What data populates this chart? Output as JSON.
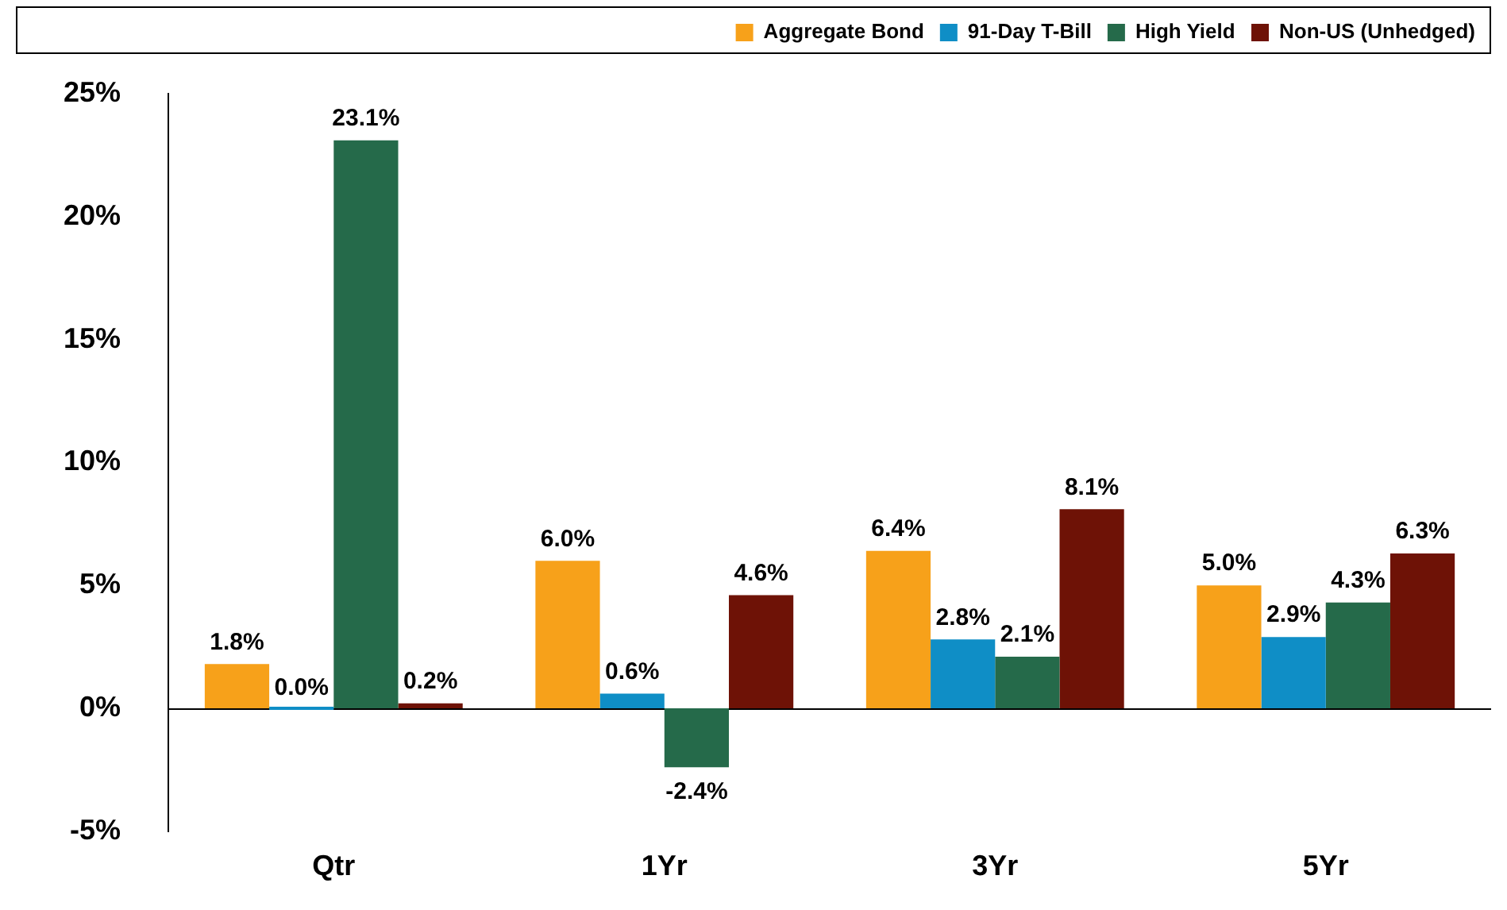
{
  "chart_data": {
    "type": "bar",
    "categories": [
      "Qtr",
      "1Yr",
      "3Yr",
      "5Yr"
    ],
    "series": [
      {
        "name": "Aggregate Bond",
        "color": "#f7a11a",
        "values": [
          1.8,
          6.0,
          6.4,
          5.0
        ],
        "value_labels": [
          "1.8%",
          "6.0%",
          "6.4%",
          "5.0%"
        ]
      },
      {
        "name": "91-Day T-Bill",
        "color": "#0f8ec6",
        "values": [
          0.0,
          0.6,
          2.8,
          2.9
        ],
        "value_labels": [
          "0.0%",
          "0.6%",
          "2.8%",
          "2.9%"
        ]
      },
      {
        "name": "High Yield",
        "color": "#256a4a",
        "values": [
          23.1,
          -2.4,
          2.1,
          4.3
        ],
        "value_labels": [
          "23.1%",
          "-2.4%",
          "2.1%",
          "4.3%"
        ]
      },
      {
        "name": "Non-US (Unhedged)",
        "color": "#6e1206",
        "values": [
          0.2,
          4.6,
          8.1,
          6.3
        ],
        "value_labels": [
          "0.2%",
          "4.6%",
          "8.1%",
          "6.3%"
        ]
      }
    ],
    "ylim": [
      -5,
      25
    ],
    "yticks": [
      {
        "value": -5,
        "label": "-5%"
      },
      {
        "value": 0,
        "label": "0%"
      },
      {
        "value": 5,
        "label": "5%"
      },
      {
        "value": 10,
        "label": "10%"
      },
      {
        "value": 15,
        "label": "15%"
      },
      {
        "value": 20,
        "label": "20%"
      },
      {
        "value": 25,
        "label": "25%"
      }
    ],
    "ref_lines": [
      {
        "axis": "y",
        "value": 0,
        "color": "#000000"
      }
    ],
    "grid": false,
    "legend": "top"
  }
}
